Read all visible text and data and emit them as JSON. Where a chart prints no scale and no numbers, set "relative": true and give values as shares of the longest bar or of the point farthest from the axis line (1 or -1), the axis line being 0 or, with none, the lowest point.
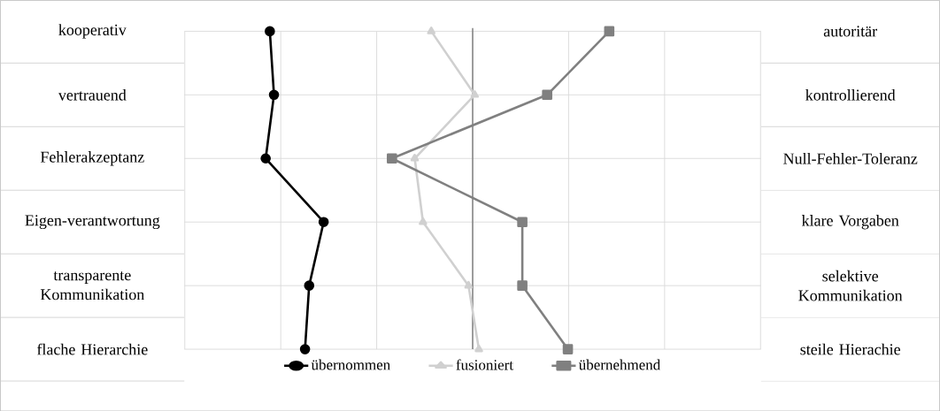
{
  "chart_data": {
    "type": "line",
    "orientation": "horizontal",
    "relative": true,
    "grid": true,
    "legend": "bottom",
    "categories": [
      "kooperativ",
      "vertrauend",
      "Fehlerakzeptanz",
      "Eigen-verantwortung",
      "transparente Kommunikation",
      "flache Hierarchie"
    ],
    "annotations": [
      "autoritär",
      "kontrollierend",
      "Null-Fehler-Toleranz",
      "klare Vorgaben",
      "selektive Kommunikation",
      "steile Hierachie"
    ],
    "series": [
      {
        "name": "übernommen",
        "color": "#000000",
        "marker": "circle",
        "values": [
          -0.98,
          -0.96,
          -1,
          -0.72,
          -0.79,
          -0.81
        ]
      },
      {
        "name": "fusioniert",
        "color": "#d0d0d0",
        "marker": "triangle",
        "values": [
          -0.2,
          0.01,
          -0.28,
          -0.24,
          -0.02,
          0.03
        ]
      },
      {
        "name": "übernehmend",
        "color": "#808080",
        "marker": "square",
        "values": [
          0.66,
          0.36,
          -0.39,
          0.24,
          0.24,
          0.46
        ]
      }
    ]
  }
}
